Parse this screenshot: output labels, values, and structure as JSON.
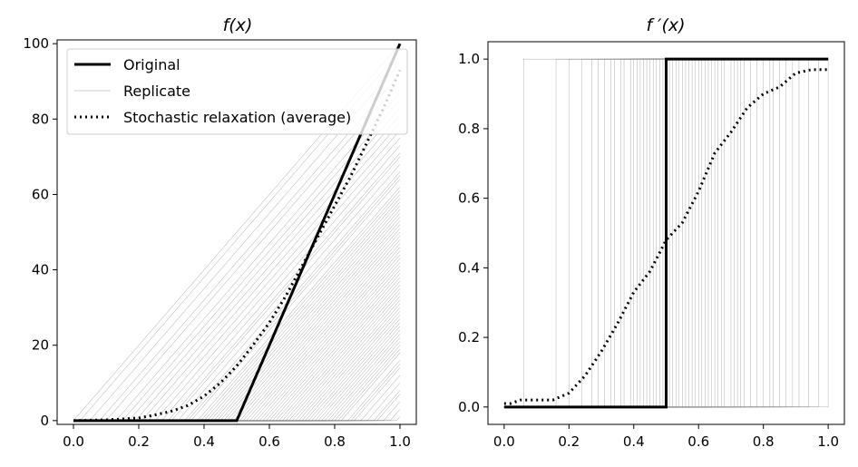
{
  "chart_data": [
    {
      "type": "line",
      "title": "f(x)",
      "xlabel": "",
      "ylabel": "",
      "xlim": [
        -0.05,
        1.05
      ],
      "ylim": [
        -1,
        101
      ],
      "xticks": [
        "0.0",
        "0.2",
        "0.4",
        "0.6",
        "0.8",
        "1.0"
      ],
      "yticks": [
        "0",
        "20",
        "40",
        "60",
        "80",
        "100"
      ],
      "grid": false,
      "legend": {
        "placement": "top-left",
        "entries": [
          "Original",
          "Replicate",
          "Stochastic relaxation (average)"
        ]
      },
      "series": [
        {
          "name": "Original",
          "style": "solid-thick",
          "color": "#000000",
          "x": [
            0.0,
            0.5,
            1.0
          ],
          "y": [
            0,
            0,
            100
          ]
        },
        {
          "name": "Replicate",
          "style": "thin-gray",
          "color": "#888888",
          "kinks": [
            0.0,
            0.02,
            0.05,
            0.08,
            0.1,
            0.13,
            0.15,
            0.17,
            0.19,
            0.21,
            0.23,
            0.25,
            0.27,
            0.29,
            0.3,
            0.32,
            0.34,
            0.35,
            0.36,
            0.38,
            0.39,
            0.4,
            0.41,
            0.42,
            0.43,
            0.44,
            0.45,
            0.46,
            0.47,
            0.48,
            0.49,
            0.5,
            0.51,
            0.52,
            0.53,
            0.54,
            0.55,
            0.56,
            0.57,
            0.58,
            0.59,
            0.6,
            0.61,
            0.62,
            0.63,
            0.64,
            0.65,
            0.66,
            0.67,
            0.68,
            0.69,
            0.7,
            0.71,
            0.72,
            0.73,
            0.74,
            0.75,
            0.76,
            0.77,
            0.78,
            0.79,
            0.8,
            0.81,
            0.82,
            0.84,
            0.85,
            0.86,
            0.88,
            0.9,
            0.92,
            0.93,
            0.95,
            0.97,
            0.99
          ]
        },
        {
          "name": "Stochastic relaxation (average)",
          "style": "dotted",
          "color": "#000000",
          "x": [
            0.0,
            0.1,
            0.2,
            0.25,
            0.3,
            0.35,
            0.4,
            0.45,
            0.5,
            0.55,
            0.6,
            0.65,
            0.7,
            0.75,
            0.8,
            0.85,
            0.9,
            0.95,
            1.0
          ],
          "y": [
            0,
            0.2,
            0.7,
            1.5,
            2.5,
            4,
            6.5,
            10,
            14.5,
            20,
            26,
            33,
            41,
            49,
            57,
            65,
            74,
            83,
            93
          ]
        }
      ]
    },
    {
      "type": "line",
      "title": "f ′(x)",
      "xlabel": "",
      "ylabel": "",
      "xlim": [
        -0.05,
        1.05
      ],
      "ylim": [
        -0.05,
        1.05
      ],
      "xticks": [
        "0.0",
        "0.2",
        "0.4",
        "0.6",
        "0.8",
        "1.0"
      ],
      "yticks": [
        "0.0",
        "0.2",
        "0.4",
        "0.6",
        "0.8",
        "1.0"
      ],
      "grid": false,
      "series": [
        {
          "name": "Original",
          "style": "solid-thick",
          "color": "#000000",
          "x": [
            0.0,
            0.5,
            0.5,
            1.0
          ],
          "y": [
            0,
            0,
            1,
            1
          ]
        },
        {
          "name": "Replicate",
          "style": "thin-gray",
          "color": "#888888",
          "steps": [
            0.06,
            0.16,
            0.2,
            0.24,
            0.27,
            0.29,
            0.31,
            0.33,
            0.34,
            0.36,
            0.37,
            0.39,
            0.4,
            0.41,
            0.42,
            0.43,
            0.44,
            0.45,
            0.46,
            0.47,
            0.48,
            0.49,
            0.5,
            0.51,
            0.52,
            0.53,
            0.54,
            0.55,
            0.56,
            0.57,
            0.58,
            0.59,
            0.6,
            0.61,
            0.62,
            0.63,
            0.64,
            0.65,
            0.66,
            0.67,
            0.68,
            0.7,
            0.71,
            0.72,
            0.73,
            0.74,
            0.76,
            0.78,
            0.8,
            0.82,
            0.83,
            0.85,
            0.87,
            0.89,
            0.91,
            0.94,
            0.97,
            1.0
          ]
        },
        {
          "name": "Stochastic relaxation (average)",
          "style": "dotted",
          "color": "#000000",
          "x": [
            0.0,
            0.02,
            0.05,
            0.1,
            0.15,
            0.2,
            0.25,
            0.3,
            0.35,
            0.4,
            0.45,
            0.5,
            0.55,
            0.6,
            0.65,
            0.7,
            0.75,
            0.8,
            0.85,
            0.9,
            0.95,
            1.0
          ],
          "y": [
            0.01,
            0.01,
            0.02,
            0.02,
            0.02,
            0.04,
            0.09,
            0.16,
            0.24,
            0.33,
            0.39,
            0.48,
            0.53,
            0.62,
            0.73,
            0.79,
            0.86,
            0.9,
            0.92,
            0.96,
            0.97,
            0.97
          ]
        }
      ]
    }
  ]
}
